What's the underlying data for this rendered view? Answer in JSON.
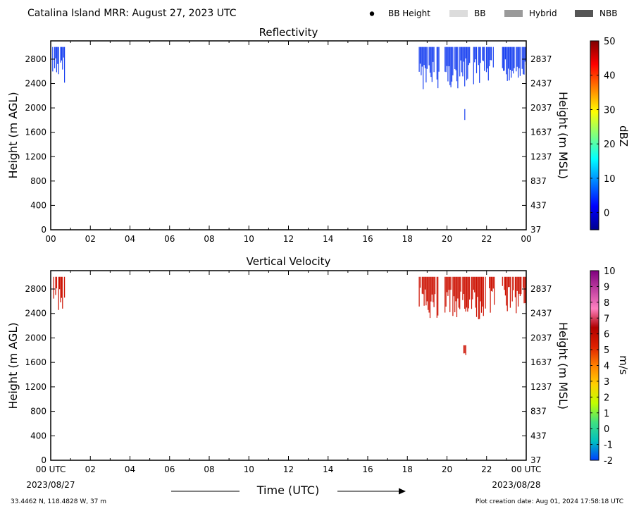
{
  "header": {
    "title": "Catalina Island MRR:  August 27, 2023 UTC",
    "legend": [
      {
        "label": "BB Height",
        "kind": "dot",
        "color": "#000000"
      },
      {
        "label": "BB",
        "kind": "swatch",
        "color": "#dcdcdc"
      },
      {
        "label": "Hybrid",
        "kind": "swatch",
        "color": "#9a9a9a"
      },
      {
        "label": "NBB",
        "kind": "swatch",
        "color": "#555555"
      }
    ]
  },
  "chart_data": [
    {
      "type": "heatmap",
      "title": "Reflectivity",
      "ylabel": "Height (m AGL)",
      "ylabel_right": "Height (m MSL)",
      "x_ticks": [
        "00",
        "02",
        "04",
        "06",
        "08",
        "10",
        "12",
        "14",
        "16",
        "18",
        "20",
        "22",
        "00"
      ],
      "y_ticks": [
        0,
        400,
        800,
        1200,
        1600,
        2000,
        2400,
        2800
      ],
      "y_ticks_right": [
        37,
        437,
        837,
        1237,
        1637,
        2037,
        2437,
        2837
      ],
      "xlim_hours": [
        0,
        24
      ],
      "ylim_m": [
        0,
        3100
      ],
      "colorbar": {
        "label": "dBZ",
        "range": [
          -5,
          50
        ],
        "ticks": [
          0,
          10,
          20,
          30,
          40,
          50
        ],
        "stops": [
          "#00008f",
          "#0000ff",
          "#007fff",
          "#00ffff",
          "#7fff7f",
          "#ffff00",
          "#ff7f00",
          "#ff0000",
          "#7f0000"
        ]
      },
      "echo_color": "#1840f0",
      "echo_segments": [
        {
          "start_h": 0.1,
          "end_h": 0.7,
          "top_m": 3000,
          "base_m": 2400
        },
        {
          "start_h": 18.6,
          "end_h": 19.6,
          "top_m": 3000,
          "base_m": 2300
        },
        {
          "start_h": 19.9,
          "end_h": 22.4,
          "top_m": 3000,
          "base_m": 2300
        },
        {
          "start_h": 22.8,
          "end_h": 24.0,
          "top_m": 3000,
          "base_m": 2400
        },
        {
          "start_h": 20.85,
          "end_h": 20.95,
          "top_m": 1980,
          "base_m": 1700
        }
      ]
    },
    {
      "type": "heatmap",
      "title": "Vertical Velocity",
      "ylabel": "Height (m AGL)",
      "ylabel_right": "Height (m MSL)",
      "x_ticks": [
        "00 UTC",
        "02",
        "04",
        "06",
        "08",
        "10",
        "12",
        "14",
        "16",
        "18",
        "20",
        "22",
        "00 UTC"
      ],
      "y_ticks": [
        0,
        400,
        800,
        1200,
        1600,
        2000,
        2400,
        2800
      ],
      "y_ticks_right": [
        37,
        437,
        837,
        1237,
        1637,
        2037,
        2437,
        2837
      ],
      "xlim_hours": [
        0,
        24
      ],
      "ylim_m": [
        0,
        3100
      ],
      "colorbar": {
        "label": "m/s",
        "range": [
          -2,
          10
        ],
        "ticks": [
          -2,
          -1,
          0,
          1,
          2,
          3,
          4,
          5,
          6,
          7,
          8,
          9,
          10
        ],
        "stops": [
          "#0040ff",
          "#00c0c0",
          "#40e080",
          "#c0ff00",
          "#ffd000",
          "#ff8000",
          "#e02000",
          "#b00000",
          "#ff80c0",
          "#c040a0",
          "#800080"
        ]
      },
      "echo_color": "#cc1000",
      "echo_segments": [
        {
          "start_h": 0.1,
          "end_h": 0.7,
          "top_m": 3000,
          "base_m": 2400
        },
        {
          "start_h": 18.6,
          "end_h": 19.6,
          "top_m": 3000,
          "base_m": 2300
        },
        {
          "start_h": 19.9,
          "end_h": 22.4,
          "top_m": 3000,
          "base_m": 2300
        },
        {
          "start_h": 22.8,
          "end_h": 24.0,
          "top_m": 3000,
          "base_m": 2400
        },
        {
          "start_h": 20.85,
          "end_h": 20.95,
          "top_m": 1880,
          "base_m": 1700
        }
      ]
    }
  ],
  "footer": {
    "date_left": "2023/08/27",
    "date_right": "2023/08/28",
    "xlabel": "Time (UTC)",
    "location": "33.4462 N, 118.4828 W, 37 m",
    "creation": "Plot creation date: Aug 01, 2024 17:58:18 UTC"
  }
}
